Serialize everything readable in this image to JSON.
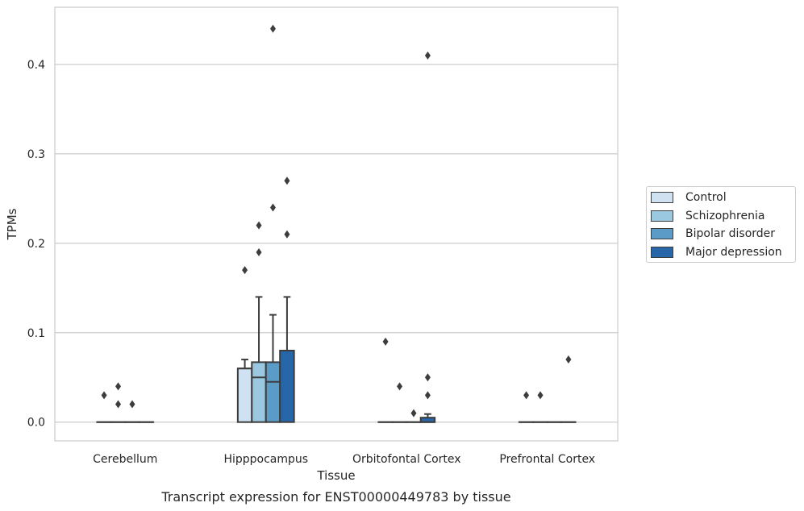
{
  "chart_data": {
    "type": "box",
    "title": "Transcript expression for ENST00000449783 by tissue",
    "xlabel": "Tissue",
    "ylabel": "TPMs",
    "ylim": [
      -0.021,
      0.464
    ],
    "yticks": [
      0.0,
      0.1,
      0.2,
      0.3,
      0.4
    ],
    "ytick_labels": [
      "0.0",
      "0.1",
      "0.2",
      "0.3",
      "0.4"
    ],
    "grid": true,
    "legend_position": "right",
    "categories": [
      "Cerebellum",
      "Hipppocampus",
      "Orbitofontal Cortex",
      "Prefrontal Cortex"
    ],
    "series": [
      {
        "name": "Control",
        "color": "#d0e1f2",
        "boxes": [
          {
            "q1": 0,
            "median": 0,
            "q3": 0,
            "whislo": 0,
            "whishi": 0,
            "fliers": [
              0.03
            ]
          },
          {
            "q1": 0,
            "median": 0.06,
            "q3": 0.06,
            "whislo": 0,
            "whishi": 0.07,
            "fliers": [
              0.17
            ]
          },
          {
            "q1": 0,
            "median": 0,
            "q3": 0,
            "whislo": 0,
            "whishi": 0,
            "fliers": [
              0.09
            ]
          },
          {
            "q1": 0,
            "median": 0,
            "q3": 0,
            "whislo": 0,
            "whishi": 0,
            "fliers": [
              0.03
            ]
          }
        ]
      },
      {
        "name": "Schizophrenia",
        "color": "#9ac8e0",
        "boxes": [
          {
            "q1": 0,
            "median": 0,
            "q3": 0,
            "whislo": 0,
            "whishi": 0,
            "fliers": [
              0.04,
              0.02
            ]
          },
          {
            "q1": 0,
            "median": 0.05,
            "q3": 0.067,
            "whislo": 0,
            "whishi": 0.14,
            "fliers": [
              0.19,
              0.22
            ]
          },
          {
            "q1": 0,
            "median": 0,
            "q3": 0,
            "whislo": 0,
            "whishi": 0,
            "fliers": [
              0.04
            ]
          },
          {
            "q1": 0,
            "median": 0,
            "q3": 0,
            "whislo": 0,
            "whishi": 0,
            "fliers": [
              0.03
            ]
          }
        ]
      },
      {
        "name": "Bipolar disorder",
        "color": "#5a9bc8",
        "boxes": [
          {
            "q1": 0,
            "median": 0,
            "q3": 0,
            "whislo": 0,
            "whishi": 0,
            "fliers": [
              0.02
            ]
          },
          {
            "q1": 0,
            "median": 0.045,
            "q3": 0.067,
            "whislo": 0,
            "whishi": 0.12,
            "fliers": [
              0.24,
              0.44
            ]
          },
          {
            "q1": 0,
            "median": 0,
            "q3": 0,
            "whislo": 0,
            "whishi": 0,
            "fliers": [
              0.01
            ]
          },
          {
            "q1": 0,
            "median": 0,
            "q3": 0,
            "whislo": 0,
            "whishi": 0,
            "fliers": []
          }
        ]
      },
      {
        "name": "Major depression",
        "color": "#2766a8",
        "boxes": [
          {
            "q1": 0,
            "median": 0,
            "q3": 0,
            "whislo": 0,
            "whishi": 0,
            "fliers": []
          },
          {
            "q1": 0,
            "median": 0.08,
            "q3": 0.08,
            "whislo": 0,
            "whishi": 0.14,
            "fliers": [
              0.21,
              0.27
            ]
          },
          {
            "q1": 0,
            "median": 0,
            "q3": 0.005,
            "whislo": 0,
            "whishi": 0.009,
            "fliers": [
              0.03,
              0.05,
              0.41
            ]
          },
          {
            "q1": 0,
            "median": 0,
            "q3": 0,
            "whislo": 0,
            "whishi": 0,
            "fliers": [
              0.07
            ]
          }
        ]
      }
    ]
  }
}
